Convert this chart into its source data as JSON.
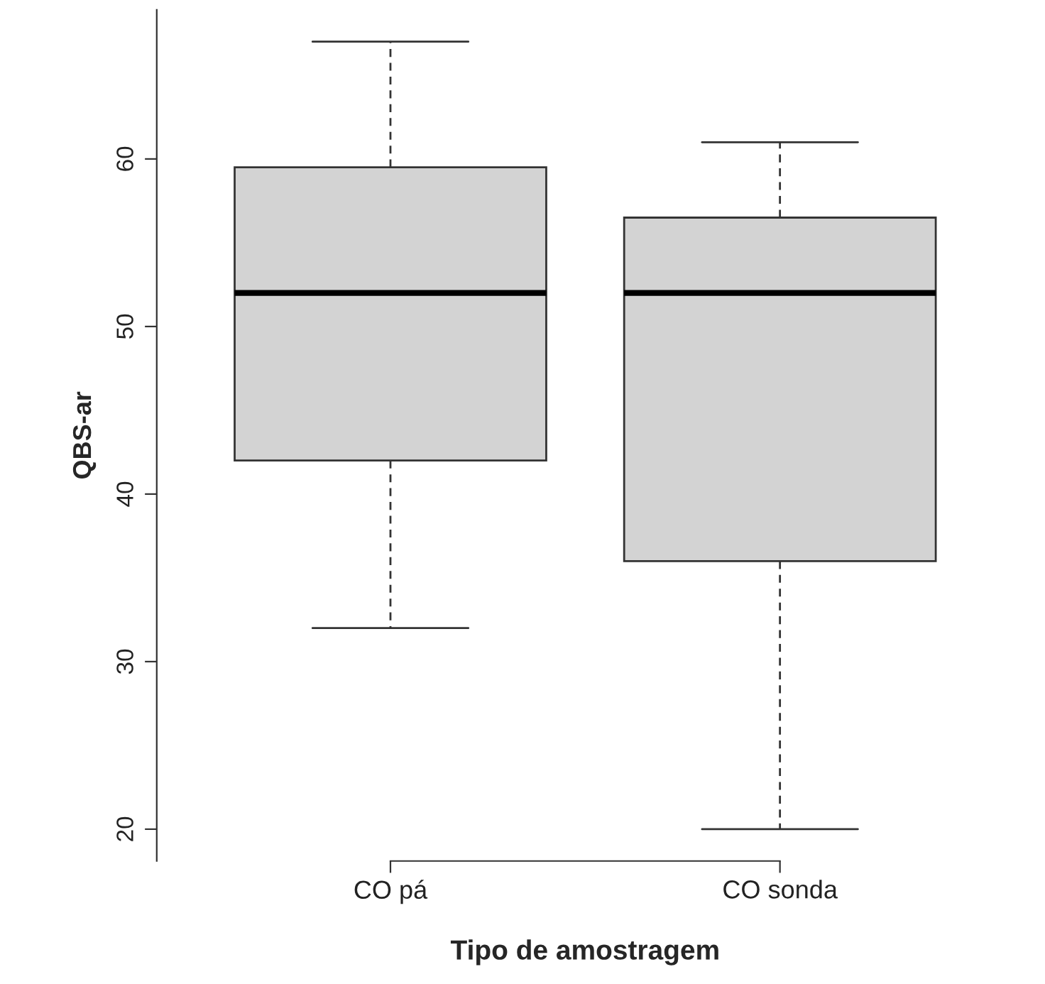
{
  "chart_data": {
    "type": "box",
    "xlabel": "Tipo de amostragem",
    "ylabel": "QBS-ar",
    "categories": [
      "CO pá",
      "CO sonda"
    ],
    "boxes": [
      {
        "low": 32,
        "q1": 42,
        "median": 52,
        "q3": 59.5,
        "high": 67
      },
      {
        "low": 20,
        "q1": 36,
        "median": 52,
        "q3": 56.5,
        "high": 61
      }
    ],
    "color": "#d3d3d3",
    "ylim": [
      18.1,
      68.9
    ],
    "yticks": [
      20,
      30,
      40,
      50,
      60
    ],
    "grid": false
  }
}
